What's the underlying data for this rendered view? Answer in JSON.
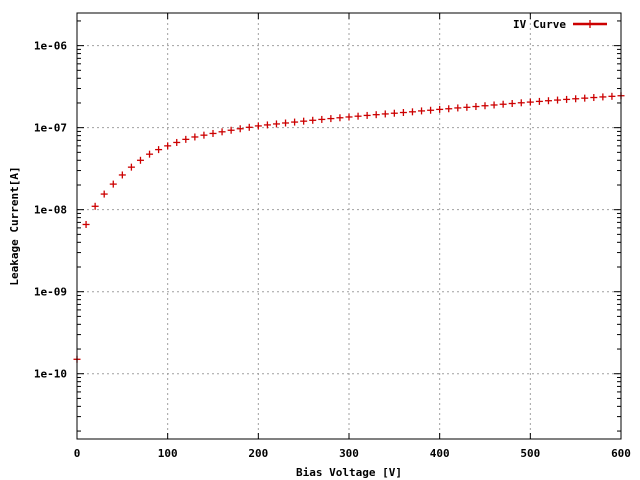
{
  "chart_data": {
    "type": "scatter",
    "title": "",
    "xlabel": "Bias Voltage [V]",
    "ylabel": "Leakage Current[A]",
    "xlim": [
      0,
      600
    ],
    "ylim": [
      1.6e-11,
      2.5e-06
    ],
    "y_scale": "log",
    "grid": true,
    "legend_position": "top-right",
    "x_ticks": [
      {
        "value": 0,
        "label": "0"
      },
      {
        "value": 100,
        "label": "100"
      },
      {
        "value": 200,
        "label": "200"
      },
      {
        "value": 300,
        "label": "300"
      },
      {
        "value": 400,
        "label": "400"
      },
      {
        "value": 500,
        "label": "500"
      },
      {
        "value": 600,
        "label": "600"
      }
    ],
    "y_ticks": [
      {
        "value": 1e-10,
        "label": "1e-10"
      },
      {
        "value": 1e-09,
        "label": "1e-09"
      },
      {
        "value": 1e-08,
        "label": "1e-08"
      },
      {
        "value": 1e-07,
        "label": "1e-07"
      },
      {
        "value": 1e-06,
        "label": "1e-06"
      }
    ],
    "series": [
      {
        "name": "IV Curve",
        "color": "#cc0000",
        "marker": "plus",
        "x": [
          0,
          10,
          20,
          30,
          40,
          50,
          60,
          70,
          80,
          90,
          100,
          110,
          120,
          130,
          140,
          150,
          160,
          170,
          180,
          190,
          200,
          210,
          220,
          230,
          240,
          250,
          260,
          270,
          280,
          290,
          300,
          310,
          320,
          330,
          340,
          350,
          360,
          370,
          380,
          390,
          400,
          410,
          420,
          430,
          440,
          450,
          460,
          470,
          480,
          490,
          500,
          510,
          520,
          530,
          540,
          550,
          560,
          570,
          580,
          590,
          600
        ],
        "y": [
          1.5e-10,
          6.6e-09,
          1.1e-08,
          1.55e-08,
          2.05e-08,
          2.65e-08,
          3.3e-08,
          4e-08,
          4.75e-08,
          5.4e-08,
          6e-08,
          6.6e-08,
          7.2e-08,
          7.7e-08,
          8.1e-08,
          8.5e-08,
          8.9e-08,
          9.3e-08,
          9.7e-08,
          1.01e-07,
          1.05e-07,
          1.08e-07,
          1.11e-07,
          1.14e-07,
          1.17e-07,
          1.2e-07,
          1.23e-07,
          1.26e-07,
          1.29e-07,
          1.32e-07,
          1.35e-07,
          1.38e-07,
          1.41e-07,
          1.44e-07,
          1.47e-07,
          1.5e-07,
          1.53e-07,
          1.56e-07,
          1.6e-07,
          1.63e-07,
          1.67e-07,
          1.7e-07,
          1.74e-07,
          1.77e-07,
          1.81e-07,
          1.85e-07,
          1.89e-07,
          1.93e-07,
          1.97e-07,
          2.01e-07,
          2.05e-07,
          2.09e-07,
          2.13e-07,
          2.17e-07,
          2.21e-07,
          2.25e-07,
          2.29e-07,
          2.33e-07,
          2.37e-07,
          2.41e-07,
          2.45e-07
        ]
      }
    ]
  }
}
